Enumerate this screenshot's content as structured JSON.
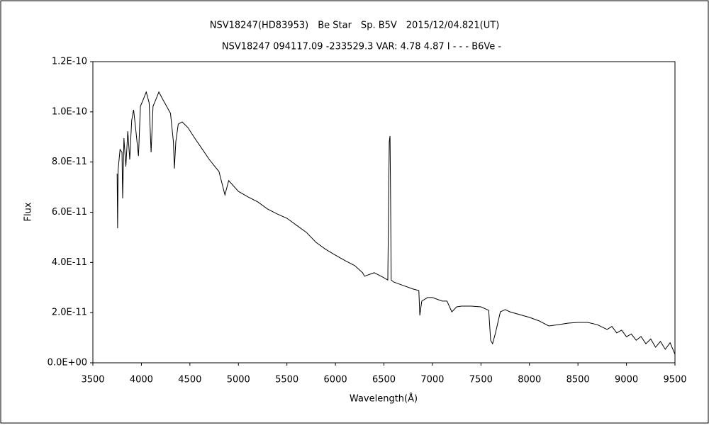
{
  "chart_data": {
    "type": "line",
    "title": "NSV18247(HD83953)　Be Star　Sp. B5V　2015/12/04.821(UT)",
    "subtitle": "NSV18247 094117.09 -233529.3 VAR: 4.78 4.87 I - - - B6Ve -",
    "x_label": "Wavelength(Å)",
    "y_label": "Flux",
    "color": "#000000",
    "xlim": [
      3500,
      9500
    ],
    "xticks": [
      3500,
      4000,
      4500,
      5000,
      5500,
      6000,
      6500,
      7000,
      7500,
      8000,
      8500,
      9000,
      9500
    ],
    "ylim": [
      0,
      1.2e-10
    ],
    "yticks": [
      {
        "value": 0,
        "label": "0.0E+00"
      },
      {
        "value": 2e-11,
        "label": "2.0E-11"
      },
      {
        "value": 4e-11,
        "label": "4.0E-11"
      },
      {
        "value": 6e-11,
        "label": "6.0E-11"
      },
      {
        "value": 8e-11,
        "label": "8.0E-11"
      },
      {
        "value": 1e-10,
        "label": "1.0E-10"
      },
      {
        "value": 1.2e-10,
        "label": "1.2E-10"
      }
    ],
    "x": [
      3750,
      3755,
      3760,
      3780,
      3800,
      3807,
      3820,
      3840,
      3860,
      3880,
      3900,
      3920,
      3940,
      3970,
      3990,
      4020,
      4050,
      4080,
      4100,
      4120,
      4150,
      4180,
      4220,
      4260,
      4300,
      4330,
      4340,
      4355,
      4380,
      4420,
      4480,
      4550,
      4600,
      4700,
      4800,
      4861,
      4900,
      5000,
      5100,
      5200,
      5300,
      5400,
      5500,
      5600,
      5700,
      5800,
      5900,
      6000,
      6100,
      6200,
      6280,
      6300,
      6400,
      6500,
      6540,
      6555,
      6563,
      6570,
      6575,
      6600,
      6700,
      6800,
      6860,
      6870,
      6890,
      6950,
      7000,
      7100,
      7150,
      7200,
      7250,
      7300,
      7400,
      7500,
      7580,
      7600,
      7620,
      7650,
      7700,
      7750,
      7800,
      7900,
      8000,
      8100,
      8200,
      8300,
      8400,
      8500,
      8600,
      8700,
      8800,
      8850,
      8900,
      8950,
      9000,
      9050,
      9100,
      9150,
      9200,
      9250,
      9300,
      9350,
      9400,
      9450,
      9500
    ],
    "values": [
      7.54e-11,
      5.36e-11,
      7.68e-11,
      8.5e-11,
      8.39e-11,
      6.55e-11,
      8.95e-11,
      7.82e-11,
      9.23e-11,
      8.1e-11,
      9.66e-11,
      1.008e-10,
      9.37e-11,
      8.24e-11,
      1.022e-10,
      1.05e-10,
      1.079e-10,
      1.036e-10,
      8.39e-11,
      1.022e-10,
      1.05e-10,
      1.079e-10,
      1.05e-10,
      1.022e-10,
      9.94e-11,
      8.81e-11,
      7.74e-11,
      8.81e-11,
      9.51e-11,
      9.6e-11,
      9.37e-11,
      8.95e-11,
      8.67e-11,
      8.1e-11,
      7.62e-11,
      6.69e-11,
      7.26e-11,
      6.83e-11,
      6.61e-11,
      6.41e-11,
      6.13e-11,
      5.93e-11,
      5.76e-11,
      5.48e-11,
      5.2e-11,
      4.8e-11,
      4.52e-11,
      4.29e-11,
      4.07e-11,
      3.87e-11,
      3.59e-11,
      3.45e-11,
      3.59e-11,
      3.39e-11,
      3.3e-11,
      8.81e-11,
      9.04e-11,
      5.99e-11,
      3.3e-11,
      3.22e-11,
      3.08e-11,
      2.94e-11,
      2.88e-11,
      1.89e-11,
      2.46e-11,
      2.6e-11,
      2.6e-11,
      2.46e-11,
      2.46e-11,
      2.03e-11,
      2.23e-11,
      2.26e-11,
      2.26e-11,
      2.23e-11,
      2.09e-11,
      9e-12,
      7.6e-12,
      1.19e-11,
      2.03e-11,
      2.12e-11,
      2.03e-11,
      1.92e-11,
      1.81e-11,
      1.67e-11,
      1.47e-11,
      1.52e-11,
      1.58e-11,
      1.61e-11,
      1.61e-11,
      1.52e-11,
      1.33e-11,
      1.45e-11,
      1.19e-11,
      1.3e-11,
      1.04e-11,
      1.15e-11,
      9e-12,
      1.05e-11,
      7.6e-12,
      9.5e-12,
      6.2e-12,
      8.5e-12,
      5.4e-12,
      8e-12,
      3.4e-12
    ]
  }
}
